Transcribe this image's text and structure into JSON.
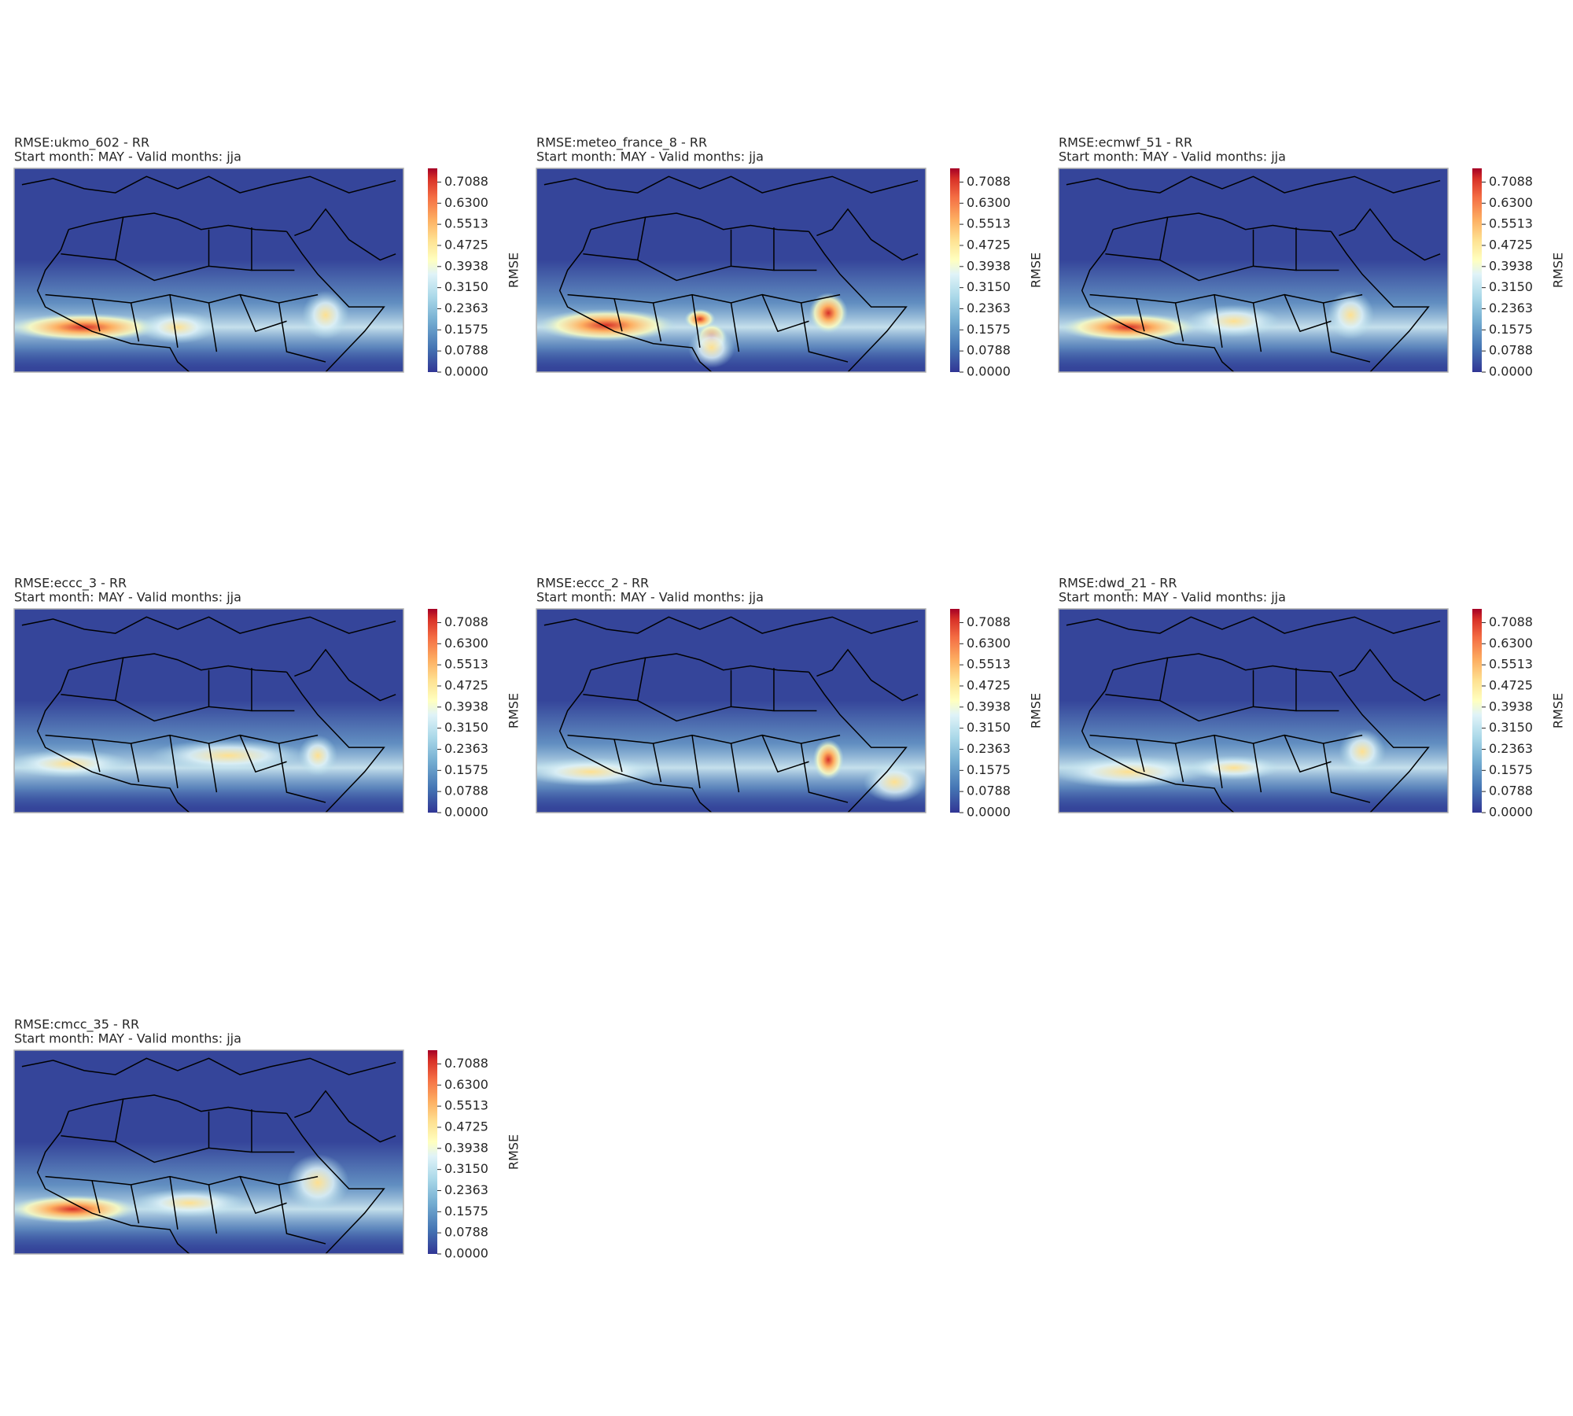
{
  "panels": [
    {
      "title": "RMSE:ukmo_602 - RR",
      "subtitle": "Start month: MAY - Valid months: jja"
    },
    {
      "title": "RMSE:meteo_france_8 - RR",
      "subtitle": "Start month: MAY - Valid months: jja"
    },
    {
      "title": "RMSE:ecmwf_51 - RR",
      "subtitle": "Start month: MAY - Valid months: jja"
    },
    {
      "title": "RMSE:eccc_3 - RR",
      "subtitle": "Start month: MAY - Valid months: jja"
    },
    {
      "title": "RMSE:eccc_2 - RR",
      "subtitle": "Start month: MAY - Valid months: jja"
    },
    {
      "title": "RMSE:dwd_21 - RR",
      "subtitle": "Start month: MAY - Valid months: jja"
    },
    {
      "title": "RMSE:cmcc_35 - RR",
      "subtitle": "Start month: MAY - Valid months: jja"
    }
  ],
  "colorbar": {
    "label": "RMSE",
    "lim": [
      0,
      0.76
    ],
    "ticks": [
      {
        "value": 0,
        "label": "0.0000"
      },
      {
        "value": 0.0788,
        "label": "0.0788"
      },
      {
        "value": 0.1575,
        "label": "0.1575"
      },
      {
        "value": 0.2363,
        "label": "0.2363"
      },
      {
        "value": 0.315,
        "label": "0.3150"
      },
      {
        "value": 0.3938,
        "label": "0.3938"
      },
      {
        "value": 0.4725,
        "label": "0.4725"
      },
      {
        "value": 0.5513,
        "label": "0.5513"
      },
      {
        "value": 0.63,
        "label": "0.6300"
      },
      {
        "value": 0.7088,
        "label": "0.7088"
      }
    ]
  }
}
